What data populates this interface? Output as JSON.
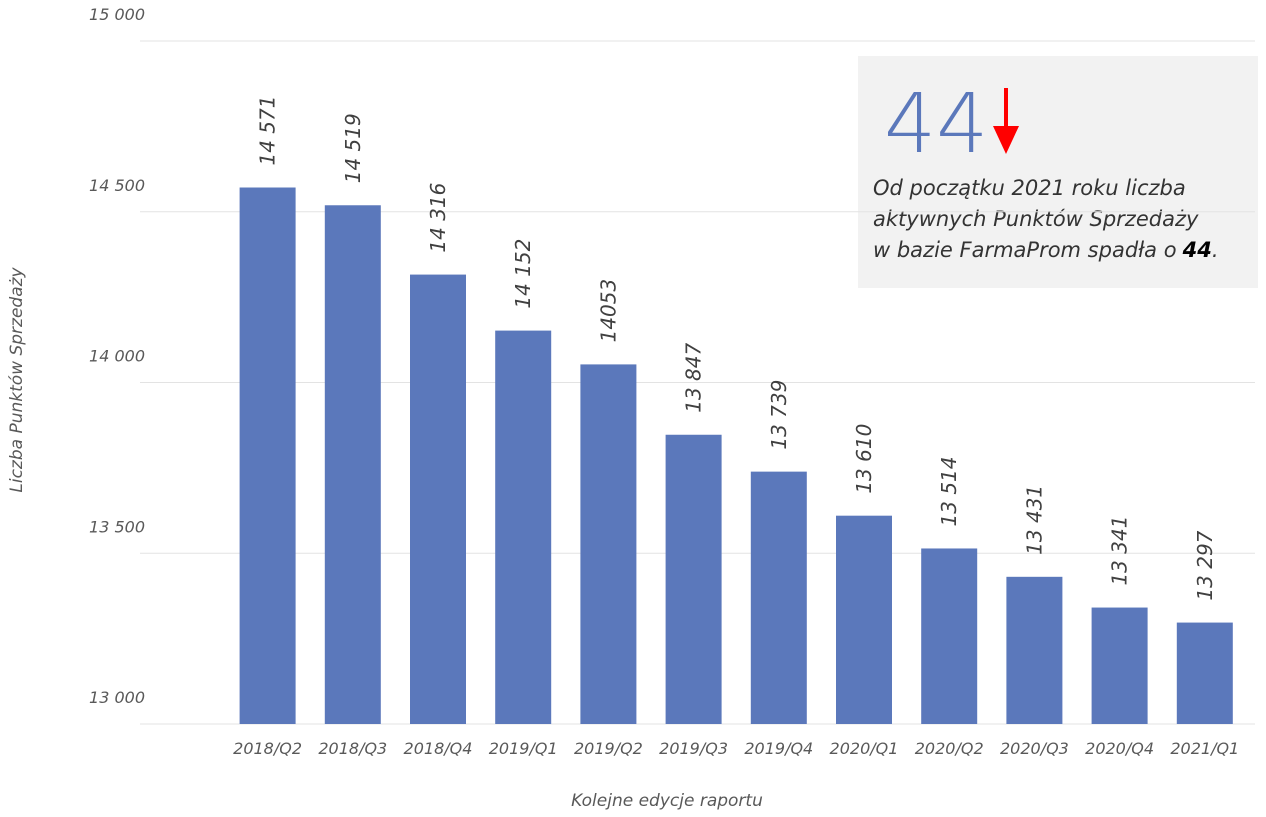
{
  "chart_data": {
    "type": "bar",
    "categories": [
      "2018/Q2",
      "2018/Q3",
      "2018/Q4",
      "2019/Q1",
      "2019/Q2",
      "2019/Q3",
      "2019/Q4",
      "2020/Q1",
      "2020/Q2",
      "2020/Q3",
      "2020/Q4",
      "2021/Q1"
    ],
    "values": [
      14571,
      14519,
      14316,
      14152,
      14053,
      13847,
      13739,
      13610,
      13514,
      13431,
      13341,
      13297
    ],
    "value_labels": [
      "14 571",
      "14 519",
      "14 316",
      "14 152",
      "14053",
      "13 847",
      "13 739",
      "13 610",
      "13 514",
      "13 431",
      "13 341",
      "13 297"
    ],
    "color": "#5b78bb",
    "ylim": [
      13000,
      15000
    ],
    "yticks": [
      {
        "value": 13000,
        "label": "13 000"
      },
      {
        "value": 13500,
        "label": "13 500"
      },
      {
        "value": 14000,
        "label": "14 000"
      },
      {
        "value": 14500,
        "label": "14 500"
      },
      {
        "value": 15000,
        "label": "15 000"
      }
    ],
    "grid": true,
    "y_label": "Liczba Punktów Sprzedaży",
    "x_label": "Kolejne edycje raportu",
    "annotation": {
      "big": "44",
      "lines": [
        "Od początku 2021 roku liczba",
        "aktywnych Punktów Sprzedaży",
        "w bazie FarmaProm spadła o"
      ],
      "emphasis": "44",
      "end": "."
    }
  }
}
